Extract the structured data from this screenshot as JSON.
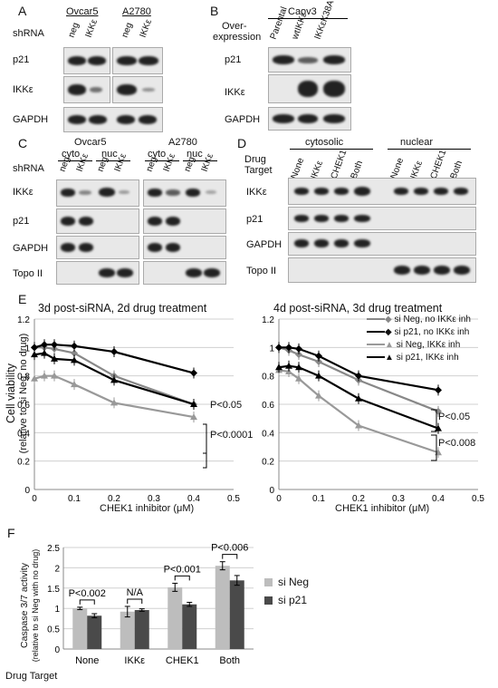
{
  "panelA": {
    "letter": "A",
    "row_header": "shRNA",
    "groups": [
      "Ovcar5",
      "A2780"
    ],
    "lanes": [
      "neg",
      "IKKε",
      "neg",
      "IKKε"
    ],
    "rows": [
      "p21",
      "IKKε",
      "GAPDH"
    ]
  },
  "panelB": {
    "letter": "B",
    "header": "Caov3",
    "row_header_line1": "Over-",
    "row_header_line2": "expression",
    "lanes": [
      "Parental",
      "wtIKKε",
      "IKKεK38A"
    ],
    "rows": [
      "p21",
      "IKKε",
      "GAPDH"
    ]
  },
  "panelC": {
    "letter": "C",
    "row_header": "shRNA",
    "groups": [
      "Ovcar5",
      "A2780"
    ],
    "subgroups": [
      "cyto",
      "nuc",
      "cyto",
      "nuc"
    ],
    "lanes": [
      "neg",
      "IKKε",
      "neg",
      "IKKε",
      "neg",
      "IKKε",
      "neg",
      "IKKε"
    ],
    "rows": [
      "IKKε",
      "p21",
      "GAPDH",
      "Topo II"
    ]
  },
  "panelD": {
    "letter": "D",
    "row_header_line1": "Drug",
    "row_header_line2": "Target",
    "groups": [
      "cytosolic",
      "nuclear"
    ],
    "lanes": [
      "None",
      "IKKε",
      "CHEK1",
      "Both",
      "None",
      "IKKε",
      "CHEK1",
      "Both"
    ],
    "rows": [
      "IKKε",
      "p21",
      "GAPDH",
      "Topo II"
    ]
  },
  "panelE": {
    "letter": "E",
    "ylabel_line1": "Cell viability",
    "ylabel_line2": "(relative to si Neg, no drug)",
    "xlabel": "CHEK1 inhibitor (μM)",
    "legend": [
      "si Neg, no IKKε inh",
      "si p21, no IKKε inh",
      "si Neg, IKKε inh",
      "si p21, IKKε inh"
    ],
    "left_title": "3d post-siRNA, 2d drug treatment",
    "right_title": "4d post-siRNA, 3d drug treatment",
    "left_pvals": [
      "P<0.05",
      "P<0.0001"
    ],
    "right_pvals": [
      "P<0.05",
      "P<0.008"
    ],
    "yticks": [
      "0",
      "0.2",
      "0.4",
      "0.6",
      "0.8",
      "1",
      "1.2"
    ],
    "xticks": [
      "0",
      "0.1",
      "0.2",
      "0.3",
      "0.4",
      "0.5"
    ]
  },
  "panelF": {
    "letter": "F",
    "ylabel_line1": "Caspase 3/7 activity",
    "ylabel_line2": "(relative to si Neg with no drug)",
    "xheader": "Drug Target",
    "categories": [
      "None",
      "IKKε",
      "CHEK1",
      "Both"
    ],
    "legend": [
      "si Neg",
      "si p21"
    ],
    "pvals": [
      "P<0.002",
      "N/A",
      "P<0.001",
      "P<0.006"
    ],
    "yticks": [
      "0",
      "0.5",
      "1",
      "1.5",
      "2",
      "2.5"
    ]
  },
  "chart_data": [
    {
      "type": "line",
      "x": [
        0,
        0.025,
        0.05,
        0.1,
        0.2,
        0.4
      ],
      "xlabel": "CHEK1 inhibitor (μM)",
      "ylabel": "Cell viability (relative to si Neg, no drug)",
      "title": "3d post-siRNA, 2d drug treatment",
      "xlim": [
        0,
        0.5
      ],
      "ylim": [
        0,
        1.2
      ],
      "series": [
        {
          "name": "si Neg, no IKKε inh",
          "color": "#888888",
          "values": [
            1.0,
            1.0,
            0.99,
            0.96,
            0.8,
            0.6
          ]
        },
        {
          "name": "si p21, no IKKε inh",
          "color": "#000000",
          "values": [
            1.0,
            1.02,
            1.02,
            1.01,
            0.97,
            0.82
          ]
        },
        {
          "name": "si Neg, IKKε inh",
          "color": "#999999",
          "values": [
            0.78,
            0.8,
            0.8,
            0.74,
            0.61,
            0.51
          ]
        },
        {
          "name": "si p21, IKKε inh",
          "color": "#000000",
          "values": [
            0.95,
            0.96,
            0.92,
            0.91,
            0.77,
            0.6
          ]
        }
      ]
    },
    {
      "type": "line",
      "x": [
        0,
        0.025,
        0.05,
        0.1,
        0.2,
        0.4
      ],
      "xlabel": "CHEK1 inhibitor (μM)",
      "title": "4d post-siRNA, 3d drug treatment",
      "xlim": [
        0,
        0.5
      ],
      "ylim": [
        0,
        1.2
      ],
      "series": [
        {
          "name": "si Neg, no IKKε inh",
          "color": "#888888",
          "values": [
            1.0,
            0.98,
            0.95,
            0.9,
            0.77,
            0.55
          ]
        },
        {
          "name": "si p21, no IKKε inh",
          "color": "#000000",
          "values": [
            1.0,
            1.0,
            0.99,
            0.94,
            0.8,
            0.7
          ]
        },
        {
          "name": "si Neg, IKKε inh",
          "color": "#999999",
          "values": [
            0.84,
            0.83,
            0.78,
            0.66,
            0.45,
            0.26
          ]
        },
        {
          "name": "si p21, IKKε inh",
          "color": "#000000",
          "values": [
            0.86,
            0.87,
            0.86,
            0.8,
            0.64,
            0.43
          ]
        }
      ]
    },
    {
      "type": "bar",
      "categories": [
        "None",
        "IKKε",
        "CHEK1",
        "Both"
      ],
      "ylabel": "Caspase 3/7 activity (relative to si Neg with no drug)",
      "ylim": [
        0,
        2.5
      ],
      "series": [
        {
          "name": "si Neg",
          "color": "#bdbdbd",
          "values": [
            1.0,
            0.92,
            1.52,
            2.05
          ],
          "errors": [
            0.03,
            0.13,
            0.1,
            0.1
          ]
        },
        {
          "name": "si p21",
          "color": "#4a4a4a",
          "values": [
            0.82,
            0.96,
            1.1,
            1.69
          ],
          "errors": [
            0.05,
            0.03,
            0.05,
            0.12
          ]
        }
      ]
    }
  ]
}
